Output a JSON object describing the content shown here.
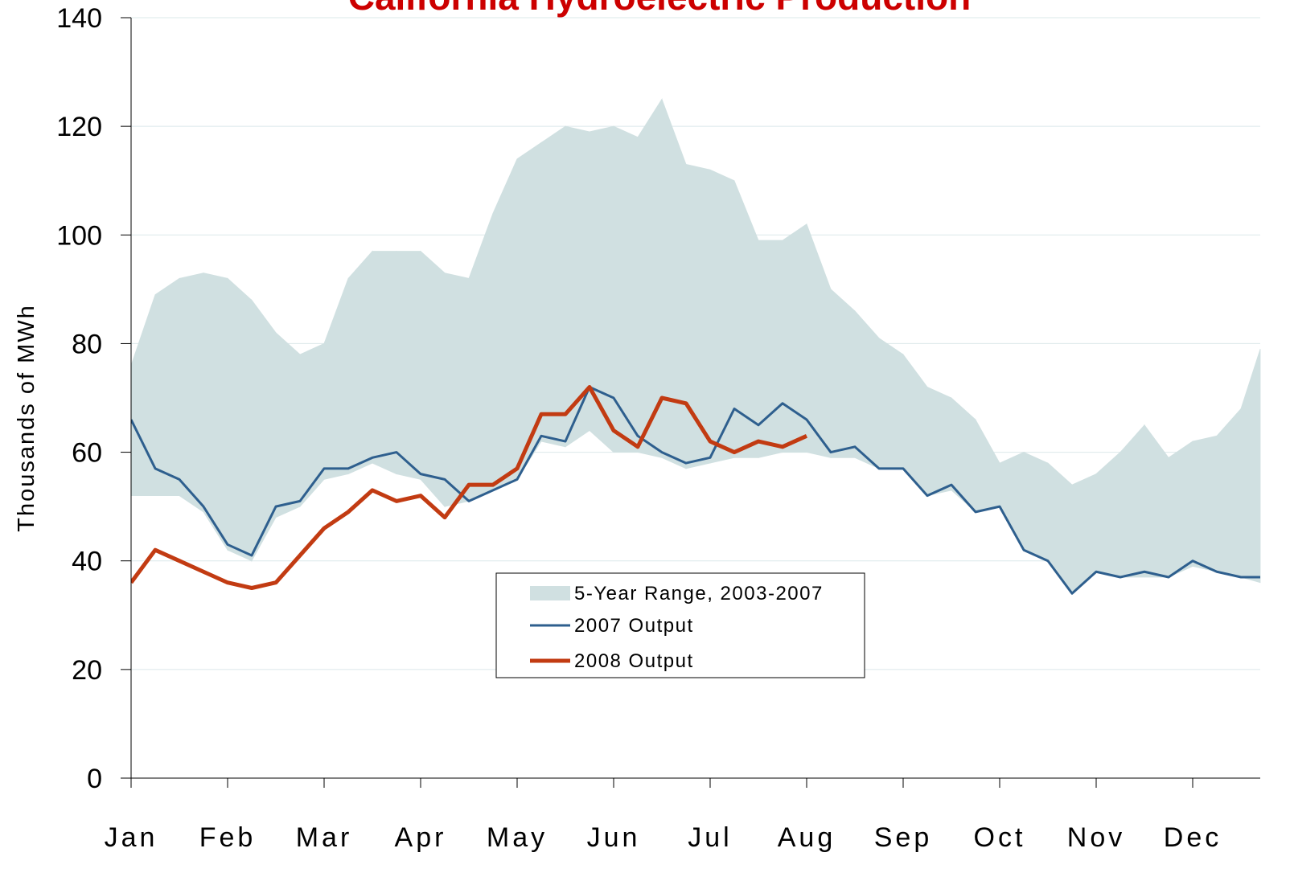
{
  "chart_data": {
    "type": "line",
    "title": "California Hydroelectric Production",
    "y_label": "Thousands of MWh",
    "x": [
      0,
      0.25,
      0.5,
      0.75,
      1,
      1.25,
      1.5,
      1.75,
      2,
      2.25,
      2.5,
      2.75,
      3,
      3.25,
      3.5,
      3.75,
      4,
      4.25,
      4.5,
      4.75,
      5,
      5.25,
      5.5,
      5.75,
      6,
      6.25,
      6.5,
      6.75,
      7,
      7.25,
      7.5,
      7.75,
      8,
      8.25,
      8.5,
      8.75,
      9,
      9.25,
      9.5,
      9.75,
      10,
      10.25,
      10.5,
      10.75,
      11,
      11.25,
      11.5,
      11.7
    ],
    "xlim": [
      0,
      11.7
    ],
    "xticks": [
      {
        "value": 0,
        "label": "Jan"
      },
      {
        "value": 1,
        "label": "Feb"
      },
      {
        "value": 2,
        "label": "Mar"
      },
      {
        "value": 3,
        "label": "Apr"
      },
      {
        "value": 4,
        "label": "May"
      },
      {
        "value": 5,
        "label": "Jun"
      },
      {
        "value": 6,
        "label": "Jul"
      },
      {
        "value": 7,
        "label": "Aug"
      },
      {
        "value": 8,
        "label": "Sep"
      },
      {
        "value": 9,
        "label": "Oct"
      },
      {
        "value": 10,
        "label": "Nov"
      },
      {
        "value": 11,
        "label": "Dec"
      }
    ],
    "ylim": [
      0,
      140
    ],
    "yticks": [
      0,
      20,
      40,
      60,
      80,
      100,
      120,
      140
    ],
    "grid": true,
    "range": {
      "name": "5-Year Range, 2003-2007",
      "color": "#d0e0e1",
      "high": [
        76,
        89,
        92,
        93,
        92,
        88,
        82,
        78,
        80,
        92,
        97,
        97,
        97,
        93,
        92,
        104,
        114,
        117,
        120,
        119,
        120,
        118,
        125,
        113,
        112,
        110,
        99,
        99,
        102,
        90,
        86,
        81,
        78,
        72,
        70,
        66,
        58,
        60,
        58,
        54,
        56,
        60,
        65,
        59,
        62,
        63,
        68,
        79
      ],
      "low": [
        52,
        52,
        52,
        49,
        42,
        40,
        48,
        50,
        55,
        56,
        58,
        56,
        55,
        50,
        51,
        53,
        55,
        62,
        61,
        64,
        60,
        60,
        59,
        57,
        58,
        59,
        59,
        60,
        60,
        59,
        59,
        57,
        57,
        52,
        53,
        49,
        50,
        42,
        40,
        34,
        38,
        37,
        37,
        37,
        39,
        38,
        37,
        36
      ]
    },
    "series": [
      {
        "name": "2007 Output",
        "color": "#2e5f8e",
        "width": 3,
        "values": [
          66,
          57,
          55,
          50,
          43,
          41,
          50,
          51,
          57,
          57,
          59,
          60,
          56,
          55,
          51,
          53,
          55,
          63,
          62,
          72,
          70,
          63,
          60,
          58,
          59,
          68,
          65,
          69,
          66,
          60,
          61,
          57,
          57,
          52,
          54,
          49,
          50,
          42,
          40,
          34,
          38,
          37,
          38,
          37,
          40,
          38,
          37,
          37
        ]
      },
      {
        "name": "2008 Output",
        "color": "#c23b12",
        "width": 5,
        "values": [
          36,
          42,
          40,
          38,
          36,
          35,
          36,
          41,
          46,
          49,
          53,
          51,
          52,
          48,
          54,
          54,
          57,
          67,
          67,
          72,
          64,
          61,
          70,
          69,
          62,
          60,
          62,
          61,
          63,
          null,
          null,
          null,
          null,
          null,
          null,
          null,
          null,
          null,
          null,
          null,
          null,
          null,
          null,
          null,
          null,
          null,
          null,
          null
        ]
      }
    ]
  }
}
